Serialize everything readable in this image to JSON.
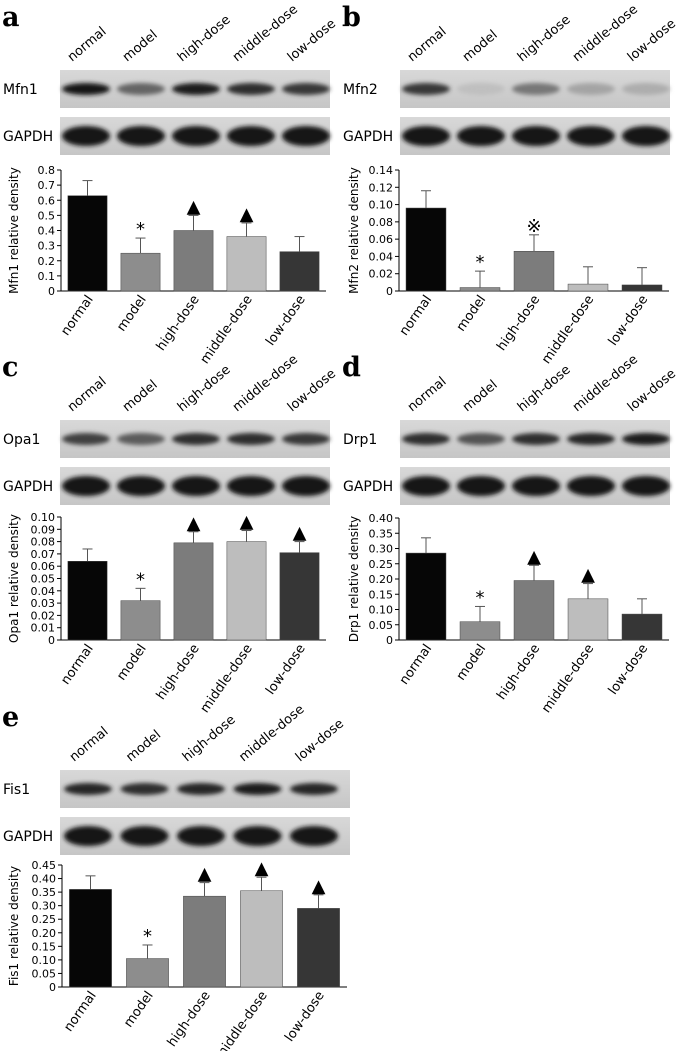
{
  "colors": {
    "normal": "#060606",
    "model": "#8d8d8d",
    "high-dose": "#7c7c7c",
    "middle-dose": "#bdbdbd",
    "low-dose": "#363636"
  },
  "panels": [
    {
      "label": "a",
      "protein": "Mfn1",
      "loading": "GAPDH",
      "band_intensity": [
        1.0,
        0.55,
        0.95,
        0.85,
        0.8
      ],
      "chart_data": {
        "type": "bar",
        "categories": [
          "normal",
          "model",
          "high-dose",
          "middle-dose",
          "low-dose"
        ],
        "values": [
          0.63,
          0.25,
          0.4,
          0.36,
          0.26
        ],
        "errors": [
          0.1,
          0.1,
          0.1,
          0.09,
          0.1
        ],
        "markers": [
          "",
          "*",
          "▲",
          "▲",
          ""
        ],
        "ylabel": "Mfn1 relative density",
        "ylim": [
          0,
          0.8
        ],
        "yticks": [
          "0",
          "0.1",
          "0.2",
          "0.3",
          "0.4",
          "0.5",
          "0.6",
          "0.7",
          "0.8"
        ]
      }
    },
    {
      "label": "b",
      "protein": "Mfn2",
      "loading": "GAPDH",
      "band_intensity": [
        0.8,
        0.05,
        0.45,
        0.2,
        0.15
      ],
      "chart_data": {
        "type": "bar",
        "categories": [
          "normal",
          "model",
          "high-dose",
          "middle-dose",
          "low-dose"
        ],
        "values": [
          0.096,
          0.004,
          0.046,
          0.008,
          0.007
        ],
        "errors": [
          0.02,
          0.019,
          0.019,
          0.02,
          0.02
        ],
        "markers": [
          "",
          "*",
          "※",
          "",
          ""
        ],
        "ylabel": "Mfn2 relative density",
        "ylim": [
          0,
          0.14
        ],
        "yticks": [
          "0",
          "0.02",
          "0.04",
          "0.06",
          "0.08",
          "0.10",
          "0.12",
          "0.14"
        ]
      }
    },
    {
      "label": "c",
      "protein": "Opa1",
      "loading": "GAPDH",
      "band_intensity": [
        0.75,
        0.6,
        0.85,
        0.85,
        0.8
      ],
      "chart_data": {
        "type": "bar",
        "categories": [
          "normal",
          "model",
          "high-dose",
          "middle-dose",
          "low-dose"
        ],
        "values": [
          0.064,
          0.032,
          0.079,
          0.08,
          0.071
        ],
        "errors": [
          0.01,
          0.01,
          0.009,
          0.009,
          0.009
        ],
        "markers": [
          "",
          "*",
          "▲",
          "▲",
          "▲"
        ],
        "ylabel": "Opa1 relative density",
        "ylim": [
          0,
          0.1
        ],
        "yticks": [
          "0",
          "0.01",
          "0.02",
          "0.03",
          "0.04",
          "0.05",
          "0.06",
          "0.07",
          "0.08",
          "0.09",
          "0.10"
        ]
      }
    },
    {
      "label": "d",
      "protein": "Drp1",
      "loading": "GAPDH",
      "band_intensity": [
        0.85,
        0.65,
        0.85,
        0.9,
        0.95
      ],
      "chart_data": {
        "type": "bar",
        "categories": [
          "normal",
          "model",
          "high-dose",
          "middle-dose",
          "low-dose"
        ],
        "values": [
          0.285,
          0.06,
          0.195,
          0.135,
          0.085
        ],
        "errors": [
          0.05,
          0.05,
          0.05,
          0.05,
          0.05
        ],
        "markers": [
          "",
          "*",
          "▲",
          "▲",
          ""
        ],
        "ylabel": "Drp1 relative density",
        "ylim": [
          0,
          0.4
        ],
        "yticks": [
          "0",
          "0.05",
          "0.10",
          "0.15",
          "0.20",
          "0.25",
          "0.30",
          "0.35",
          "0.40"
        ]
      }
    },
    {
      "label": "e",
      "protein": "Fis1",
      "loading": "GAPDH",
      "band_intensity": [
        0.9,
        0.85,
        0.9,
        0.95,
        0.9
      ],
      "chart_data": {
        "type": "bar",
        "categories": [
          "normal",
          "model",
          "high-dose",
          "middle-dose",
          "low-dose"
        ],
        "values": [
          0.36,
          0.105,
          0.335,
          0.355,
          0.29
        ],
        "errors": [
          0.05,
          0.05,
          0.05,
          0.05,
          0.05
        ],
        "markers": [
          "",
          "*",
          "▲",
          "▲",
          "▲"
        ],
        "ylabel": "Fis1 relative density",
        "ylim": [
          0,
          0.45
        ],
        "yticks": [
          "0",
          "0.05",
          "0.10",
          "0.15",
          "0.20",
          "0.25",
          "0.30",
          "0.35",
          "0.40",
          "0.45"
        ]
      }
    }
  ]
}
